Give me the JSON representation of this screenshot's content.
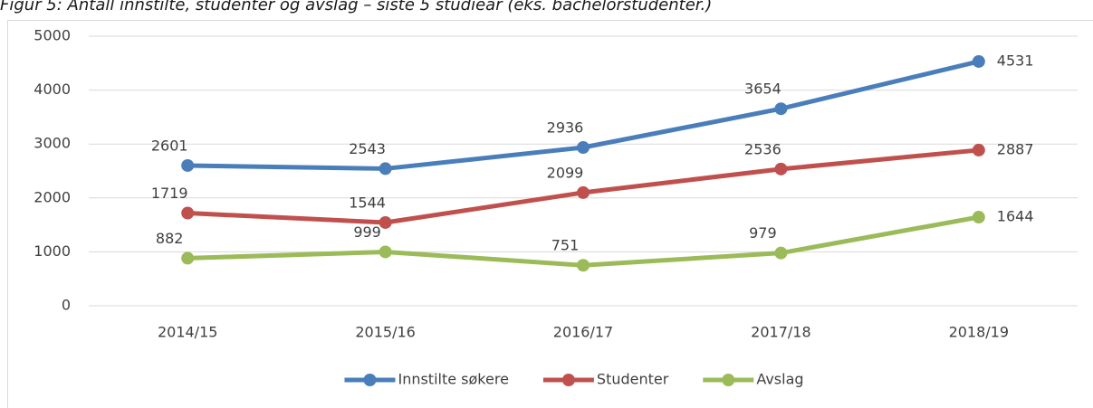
{
  "chart_data": {
    "type": "line",
    "title": "Figur 5: Antall innstilte, studenter og avslag – siste 5 studieår (eks. bachelorstudenter.)",
    "categories": [
      "2014/15",
      "2015/16",
      "2016/17",
      "2017/18",
      "2018/19"
    ],
    "series": [
      {
        "name": "Innstilte søkere",
        "color": "#4a7ebb",
        "values": [
          2601,
          2543,
          2936,
          3654,
          4531
        ]
      },
      {
        "name": "Studenter",
        "color": "#c0504d",
        "values": [
          1719,
          1544,
          2099,
          2536,
          2887
        ]
      },
      {
        "name": "Avslag",
        "color": "#9bbb59",
        "values": [
          882,
          999,
          751,
          979,
          1644
        ]
      }
    ],
    "ylim": [
      0,
      5000
    ],
    "yticks": [
      0,
      1000,
      2000,
      3000,
      4000,
      5000
    ],
    "grid": true,
    "legend": "bottom"
  }
}
